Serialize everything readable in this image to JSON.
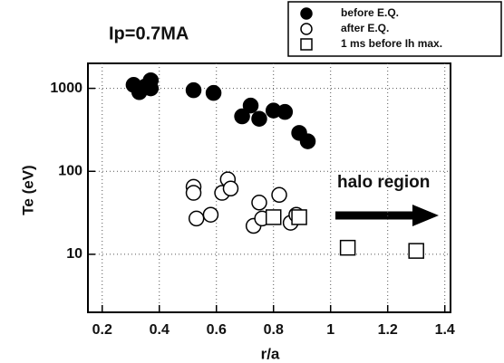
{
  "chart_data": {
    "type": "scatter",
    "title": "Ip=0.7MA",
    "xlabel": "r/a",
    "ylabel": "Te (eV)",
    "annotation": "halo region",
    "ylog": true,
    "grid": true,
    "legend": "top-right",
    "xlim": [
      0.15,
      1.42
    ],
    "ylim": [
      2,
      2000
    ],
    "xticks": [
      0.2,
      0.4,
      0.6,
      0.8,
      1,
      1.2,
      1.4
    ],
    "yticks": [
      10,
      100,
      1000
    ],
    "series": [
      {
        "name": "before E.Q.",
        "color": "#000000",
        "marker": "filled-circle",
        "x": [
          0.31,
          0.33,
          0.35,
          0.37,
          0.37,
          0.52,
          0.59,
          0.69,
          0.72,
          0.75,
          0.8,
          0.84,
          0.89,
          0.92
        ],
        "values": [
          1100,
          900,
          1050,
          1250,
          1000,
          950,
          880,
          460,
          620,
          430,
          540,
          520,
          290,
          230
        ]
      },
      {
        "name": "after E.Q.",
        "color": "#000000",
        "marker": "open-circle",
        "x": [
          0.52,
          0.52,
          0.53,
          0.58,
          0.62,
          0.64,
          0.65,
          0.73,
          0.75,
          0.76,
          0.82,
          0.86,
          0.88
        ],
        "values": [
          65,
          55,
          27,
          30,
          55,
          80,
          62,
          22,
          42,
          27,
          52,
          24,
          30
        ]
      },
      {
        "name": "1 ms before Ih max.",
        "color": "#000000",
        "marker": "open-square",
        "x": [
          0.8,
          0.89,
          1.06,
          1.3
        ],
        "values": [
          28,
          28,
          12,
          11
        ]
      }
    ]
  }
}
